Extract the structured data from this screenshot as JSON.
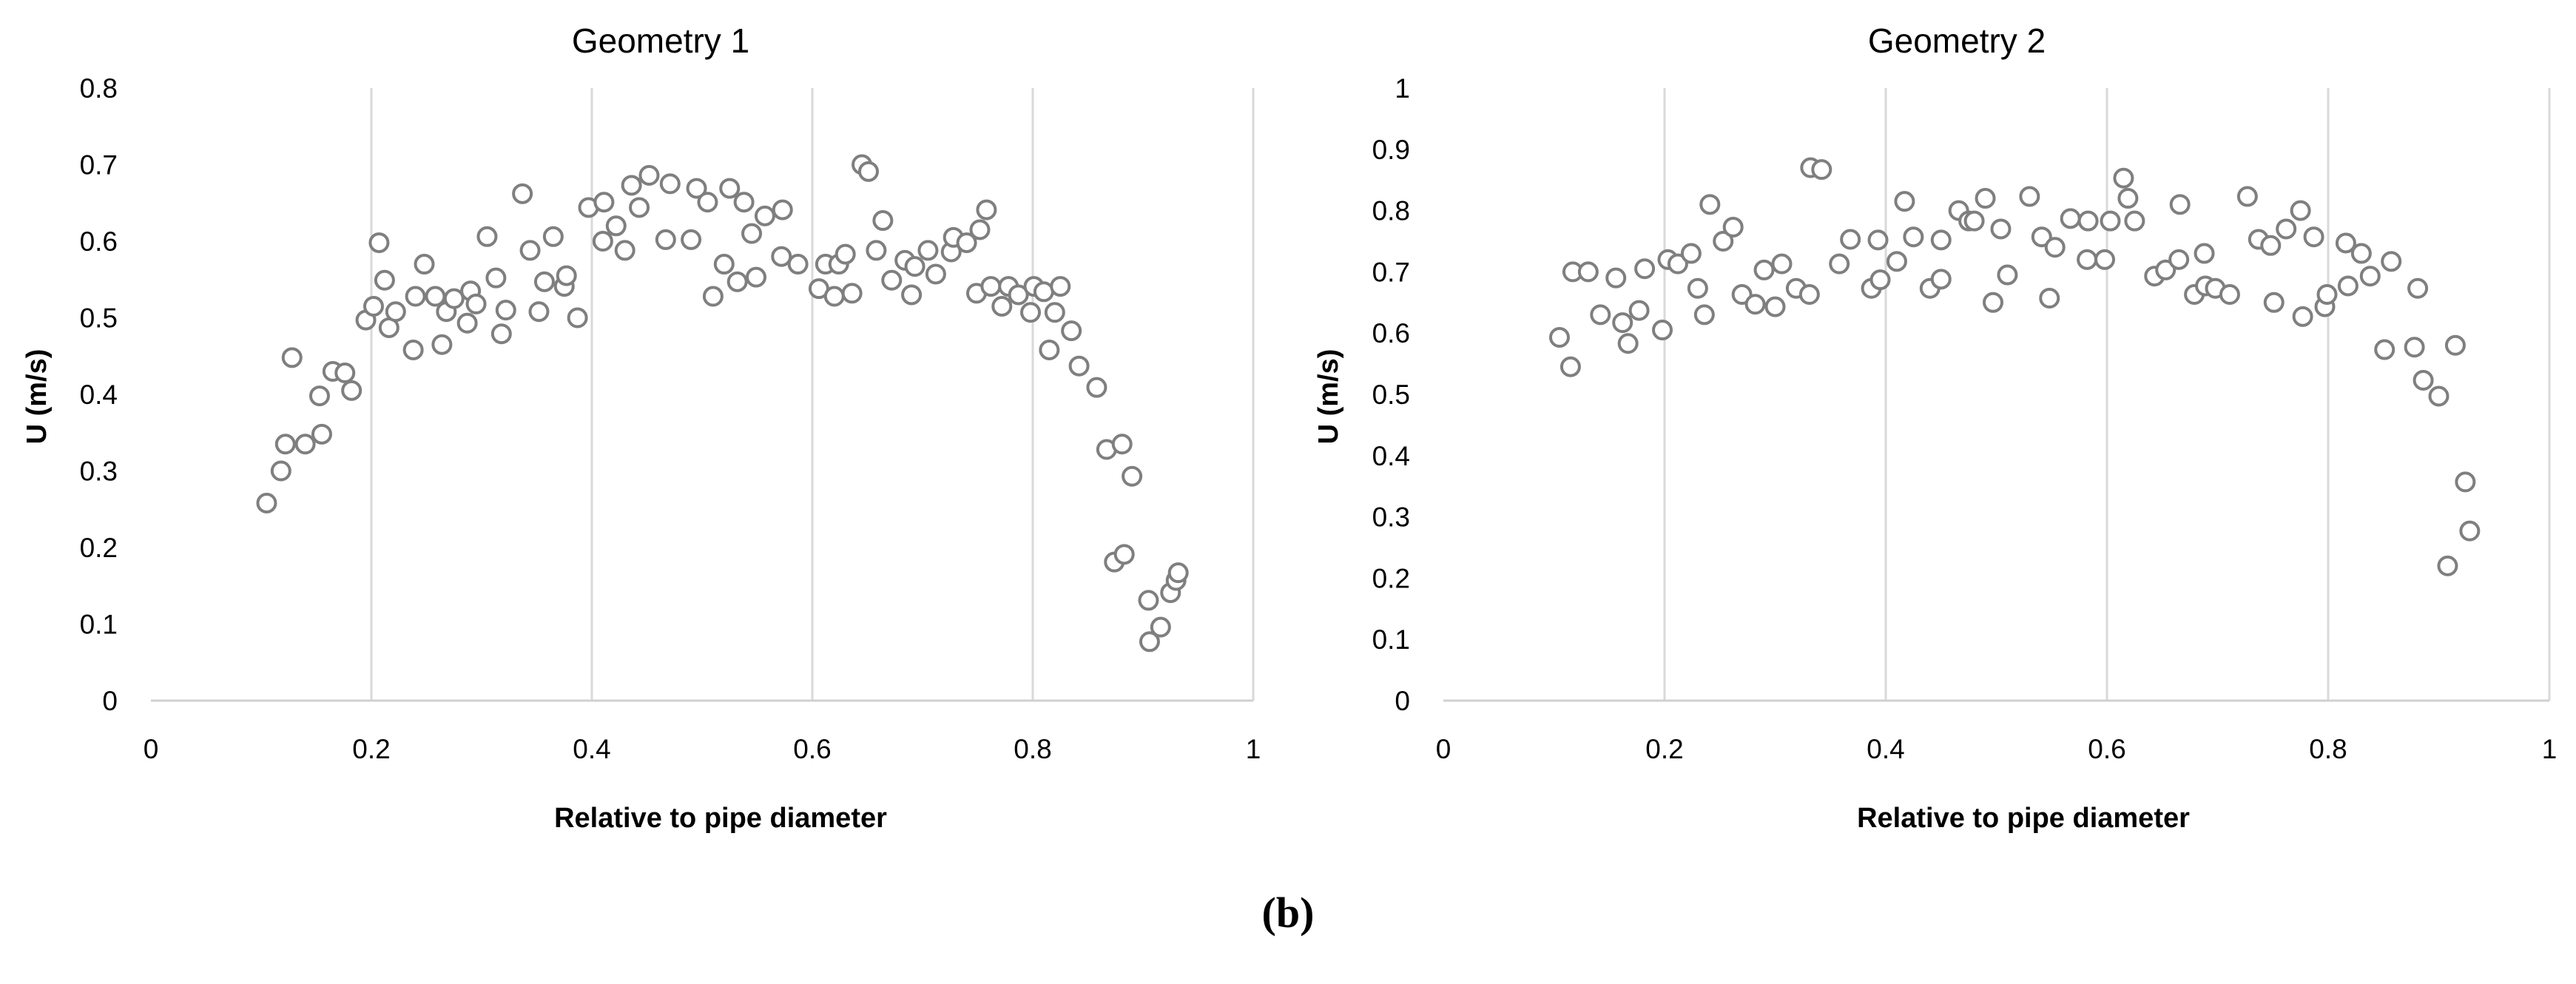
{
  "caption": "(b)",
  "chart_data": [
    {
      "type": "scatter",
      "title": "Geometry 1",
      "xlabel": "Relative to pipe diameter",
      "ylabel": "U (m/s)",
      "xlim": [
        0,
        1
      ],
      "ylim": [
        0,
        0.8
      ],
      "xticks": [
        0,
        0.2,
        0.4,
        0.6,
        0.8,
        1
      ],
      "xtick_labels": [
        "0",
        "0.2",
        "0.4",
        "0.6",
        "0.8",
        "1"
      ],
      "yticks": [
        0,
        0.1,
        0.2,
        0.3,
        0.4,
        0.5,
        0.6,
        0.7,
        0.8
      ],
      "ytick_labels": [
        "0",
        "0.1",
        "0.2",
        "0.3",
        "0.4",
        "0.5",
        "0.6",
        "0.7",
        "0.8"
      ],
      "grid": "vertical",
      "marker": "open-circle",
      "color": "#7f7f7f",
      "points": [
        [
          0.105,
          0.258
        ],
        [
          0.118,
          0.3
        ],
        [
          0.122,
          0.335
        ],
        [
          0.128,
          0.448
        ],
        [
          0.14,
          0.335
        ],
        [
          0.153,
          0.398
        ],
        [
          0.155,
          0.348
        ],
        [
          0.165,
          0.43
        ],
        [
          0.176,
          0.428
        ],
        [
          0.182,
          0.405
        ],
        [
          0.195,
          0.497
        ],
        [
          0.202,
          0.515
        ],
        [
          0.207,
          0.598
        ],
        [
          0.212,
          0.549
        ],
        [
          0.216,
          0.487
        ],
        [
          0.222,
          0.508
        ],
        [
          0.238,
          0.458
        ],
        [
          0.24,
          0.528
        ],
        [
          0.248,
          0.57
        ],
        [
          0.258,
          0.528
        ],
        [
          0.264,
          0.465
        ],
        [
          0.268,
          0.508
        ],
        [
          0.275,
          0.525
        ],
        [
          0.287,
          0.493
        ],
        [
          0.29,
          0.535
        ],
        [
          0.295,
          0.518
        ],
        [
          0.305,
          0.606
        ],
        [
          0.313,
          0.552
        ],
        [
          0.318,
          0.479
        ],
        [
          0.322,
          0.51
        ],
        [
          0.337,
          0.662
        ],
        [
          0.344,
          0.588
        ],
        [
          0.352,
          0.508
        ],
        [
          0.357,
          0.547
        ],
        [
          0.365,
          0.606
        ],
        [
          0.375,
          0.541
        ],
        [
          0.377,
          0.555
        ],
        [
          0.387,
          0.5
        ],
        [
          0.397,
          0.644
        ],
        [
          0.41,
          0.6
        ],
        [
          0.411,
          0.651
        ],
        [
          0.422,
          0.62
        ],
        [
          0.43,
          0.588
        ],
        [
          0.436,
          0.673
        ],
        [
          0.443,
          0.644
        ],
        [
          0.452,
          0.686
        ],
        [
          0.467,
          0.602
        ],
        [
          0.471,
          0.675
        ],
        [
          0.49,
          0.602
        ],
        [
          0.495,
          0.669
        ],
        [
          0.505,
          0.651
        ],
        [
          0.51,
          0.528
        ],
        [
          0.52,
          0.57
        ],
        [
          0.525,
          0.669
        ],
        [
          0.532,
          0.547
        ],
        [
          0.538,
          0.651
        ],
        [
          0.545,
          0.61
        ],
        [
          0.549,
          0.553
        ],
        [
          0.557,
          0.633
        ],
        [
          0.572,
          0.58
        ],
        [
          0.573,
          0.641
        ],
        [
          0.587,
          0.57
        ],
        [
          0.606,
          0.538
        ],
        [
          0.612,
          0.57
        ],
        [
          0.62,
          0.528
        ],
        [
          0.624,
          0.57
        ],
        [
          0.63,
          0.583
        ],
        [
          0.636,
          0.532
        ],
        [
          0.645,
          0.7
        ],
        [
          0.651,
          0.691
        ],
        [
          0.658,
          0.588
        ],
        [
          0.664,
          0.627
        ],
        [
          0.672,
          0.549
        ],
        [
          0.684,
          0.575
        ],
        [
          0.69,
          0.53
        ],
        [
          0.693,
          0.567
        ],
        [
          0.705,
          0.588
        ],
        [
          0.712,
          0.557
        ],
        [
          0.726,
          0.586
        ],
        [
          0.728,
          0.605
        ],
        [
          0.74,
          0.598
        ],
        [
          0.749,
          0.532
        ],
        [
          0.752,
          0.615
        ],
        [
          0.758,
          0.641
        ],
        [
          0.762,
          0.541
        ],
        [
          0.772,
          0.515
        ],
        [
          0.778,
          0.541
        ],
        [
          0.787,
          0.53
        ],
        [
          0.798,
          0.507
        ],
        [
          0.801,
          0.541
        ],
        [
          0.81,
          0.534
        ],
        [
          0.815,
          0.458
        ],
        [
          0.82,
          0.507
        ],
        [
          0.825,
          0.541
        ],
        [
          0.835,
          0.483
        ],
        [
          0.842,
          0.437
        ],
        [
          0.858,
          0.409
        ],
        [
          0.867,
          0.328
        ],
        [
          0.874,
          0.181
        ],
        [
          0.881,
          0.335
        ],
        [
          0.883,
          0.191
        ],
        [
          0.89,
          0.293
        ],
        [
          0.905,
          0.131
        ],
        [
          0.906,
          0.077
        ],
        [
          0.916,
          0.096
        ],
        [
          0.925,
          0.141
        ],
        [
          0.93,
          0.157
        ],
        [
          0.932,
          0.167
        ]
      ]
    },
    {
      "type": "scatter",
      "title": "Geometry 2",
      "xlabel": "Relative to pipe diameter",
      "ylabel": "U (m/s)",
      "xlim": [
        0,
        1
      ],
      "ylim": [
        0,
        1
      ],
      "xticks": [
        0,
        0.2,
        0.4,
        0.6,
        0.8,
        1
      ],
      "xtick_labels": [
        "0",
        "0.2",
        "0.4",
        "0.6",
        "0.8",
        "1"
      ],
      "yticks": [
        0,
        0.1,
        0.2,
        0.3,
        0.4,
        0.5,
        0.6,
        0.7,
        0.8,
        0.9,
        1
      ],
      "ytick_labels": [
        "0",
        "0.1",
        "0.2",
        "0.3",
        "0.4",
        "0.5",
        "0.6",
        "0.7",
        "0.8",
        "0.9",
        "1"
      ],
      "grid": "vertical",
      "marker": "open-circle",
      "color": "#7f7f7f",
      "points": [
        [
          0.105,
          0.593
        ],
        [
          0.115,
          0.545
        ],
        [
          0.117,
          0.7
        ],
        [
          0.131,
          0.7
        ],
        [
          0.142,
          0.63
        ],
        [
          0.156,
          0.69
        ],
        [
          0.162,
          0.617
        ],
        [
          0.167,
          0.583
        ],
        [
          0.177,
          0.637
        ],
        [
          0.182,
          0.705
        ],
        [
          0.198,
          0.605
        ],
        [
          0.203,
          0.72
        ],
        [
          0.212,
          0.713
        ],
        [
          0.224,
          0.73
        ],
        [
          0.23,
          0.673
        ],
        [
          0.236,
          0.63
        ],
        [
          0.241,
          0.81
        ],
        [
          0.253,
          0.75
        ],
        [
          0.262,
          0.773
        ],
        [
          0.27,
          0.663
        ],
        [
          0.282,
          0.647
        ],
        [
          0.29,
          0.703
        ],
        [
          0.3,
          0.643
        ],
        [
          0.306,
          0.713
        ],
        [
          0.319,
          0.673
        ],
        [
          0.331,
          0.663
        ],
        [
          0.332,
          0.87
        ],
        [
          0.342,
          0.867
        ],
        [
          0.358,
          0.713
        ],
        [
          0.368,
          0.753
        ],
        [
          0.387,
          0.673
        ],
        [
          0.393,
          0.752
        ],
        [
          0.395,
          0.687
        ],
        [
          0.41,
          0.717
        ],
        [
          0.417,
          0.815
        ],
        [
          0.425,
          0.757
        ],
        [
          0.44,
          0.673
        ],
        [
          0.45,
          0.688
        ],
        [
          0.45,
          0.752
        ],
        [
          0.466,
          0.8
        ],
        [
          0.475,
          0.783
        ],
        [
          0.48,
          0.783
        ],
        [
          0.49,
          0.82
        ],
        [
          0.497,
          0.65
        ],
        [
          0.504,
          0.77
        ],
        [
          0.51,
          0.695
        ],
        [
          0.53,
          0.823
        ],
        [
          0.541,
          0.757
        ],
        [
          0.548,
          0.657
        ],
        [
          0.553,
          0.74
        ],
        [
          0.567,
          0.787
        ],
        [
          0.582,
          0.72
        ],
        [
          0.583,
          0.783
        ],
        [
          0.598,
          0.72
        ],
        [
          0.603,
          0.783
        ],
        [
          0.615,
          0.853
        ],
        [
          0.619,
          0.82
        ],
        [
          0.625,
          0.783
        ],
        [
          0.643,
          0.693
        ],
        [
          0.653,
          0.703
        ],
        [
          0.665,
          0.72
        ],
        [
          0.666,
          0.81
        ],
        [
          0.679,
          0.663
        ],
        [
          0.688,
          0.73
        ],
        [
          0.689,
          0.677
        ],
        [
          0.698,
          0.673
        ],
        [
          0.711,
          0.663
        ],
        [
          0.727,
          0.823
        ],
        [
          0.737,
          0.753
        ],
        [
          0.748,
          0.743
        ],
        [
          0.751,
          0.65
        ],
        [
          0.762,
          0.77
        ],
        [
          0.775,
          0.8
        ],
        [
          0.777,
          0.627
        ],
        [
          0.787,
          0.757
        ],
        [
          0.797,
          0.643
        ],
        [
          0.799,
          0.663
        ],
        [
          0.816,
          0.747
        ],
        [
          0.818,
          0.677
        ],
        [
          0.83,
          0.73
        ],
        [
          0.838,
          0.693
        ],
        [
          0.851,
          0.573
        ],
        [
          0.857,
          0.717
        ],
        [
          0.878,
          0.577
        ],
        [
          0.881,
          0.673
        ],
        [
          0.886,
          0.523
        ],
        [
          0.9,
          0.497
        ],
        [
          0.908,
          0.22
        ],
        [
          0.915,
          0.58
        ],
        [
          0.924,
          0.357
        ],
        [
          0.928,
          0.277
        ]
      ]
    }
  ]
}
